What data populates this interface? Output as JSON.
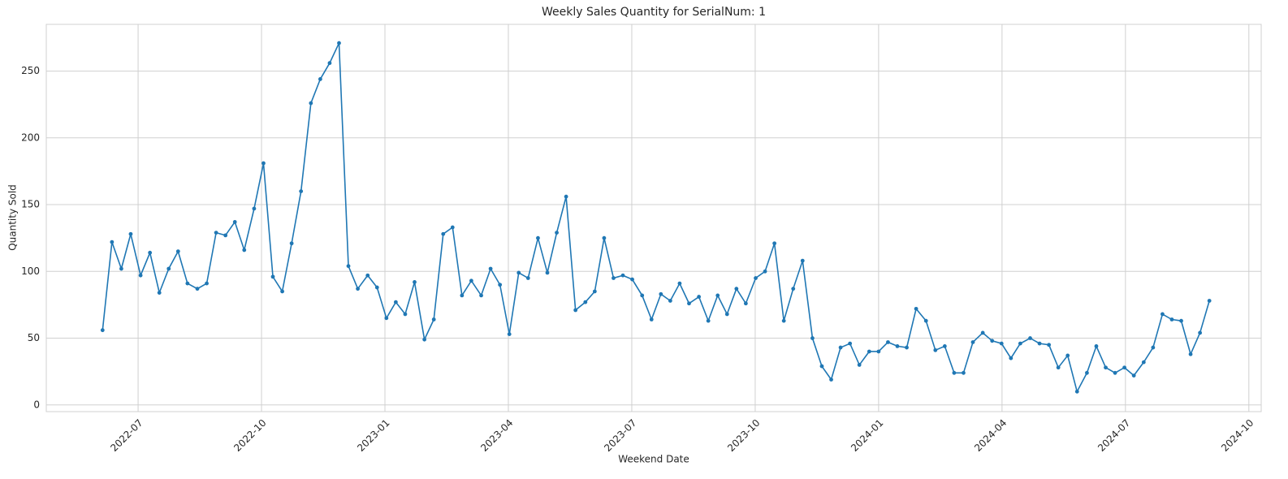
{
  "chart_data": {
    "type": "line",
    "title": "Weekly Sales Quantity for SerialNum: 1",
    "xlabel": "Weekend Date",
    "ylabel": "Quantity Sold",
    "color": "#1f77b4",
    "grid": true,
    "markers": true,
    "x": [
      2022.428,
      2022.447,
      2022.466,
      2022.485,
      2022.505,
      2022.524,
      2022.543,
      2022.562,
      2022.581,
      2022.6,
      2022.62,
      2022.639,
      2022.658,
      2022.677,
      2022.696,
      2022.715,
      2022.735,
      2022.754,
      2022.773,
      2022.792,
      2022.811,
      2022.83,
      2022.85,
      2022.869,
      2022.888,
      2022.907,
      2022.926,
      2022.945,
      2022.965,
      2022.984,
      2023.003,
      2023.022,
      2023.041,
      2023.06,
      2023.08,
      2023.099,
      2023.118,
      2023.137,
      2023.156,
      2023.175,
      2023.195,
      2023.214,
      2023.233,
      2023.252,
      2023.271,
      2023.29,
      2023.31,
      2023.329,
      2023.348,
      2023.367,
      2023.386,
      2023.406,
      2023.425,
      2023.444,
      2023.463,
      2023.482,
      2023.501,
      2023.521,
      2023.54,
      2023.559,
      2023.578,
      2023.597,
      2023.616,
      2023.636,
      2023.655,
      2023.674,
      2023.693,
      2023.712,
      2023.731,
      2023.751,
      2023.77,
      2023.789,
      2023.808,
      2023.827,
      2023.846,
      2023.866,
      2023.885,
      2023.904,
      2023.923,
      2023.942,
      2023.961,
      2023.981,
      2024.0,
      2024.019,
      2024.038,
      2024.057,
      2024.076,
      2024.096,
      2024.115,
      2024.134,
      2024.153,
      2024.172,
      2024.191,
      2024.211,
      2024.23,
      2024.249,
      2024.268,
      2024.287,
      2024.307,
      2024.326,
      2024.345,
      2024.364,
      2024.383,
      2024.402,
      2024.422,
      2024.441,
      2024.46,
      2024.479,
      2024.498,
      2024.517,
      2024.537,
      2024.556,
      2024.575,
      2024.594,
      2024.613,
      2024.632,
      2024.651,
      2024.67
    ],
    "values": [
      56,
      122,
      102,
      128,
      97,
      114,
      84,
      102,
      115,
      91,
      87,
      91,
      129,
      127,
      137,
      116,
      147,
      181,
      96,
      85,
      121,
      160,
      226,
      244,
      256,
      271,
      104,
      87,
      97,
      88,
      65,
      77,
      68,
      92,
      49,
      64,
      128,
      133,
      82,
      93,
      82,
      102,
      90,
      53,
      99,
      95,
      125,
      99,
      129,
      156,
      71,
      77,
      85,
      125,
      95,
      97,
      94,
      82,
      64,
      83,
      78,
      91,
      76,
      81,
      63,
      82,
      68,
      87,
      76,
      95,
      100,
      121,
      63,
      87,
      108,
      50,
      29,
      19,
      43,
      46,
      30,
      40,
      40,
      47,
      44,
      43,
      72,
      63,
      41,
      44,
      24,
      24,
      47,
      54,
      48,
      46,
      35,
      46,
      50,
      46,
      45,
      28,
      37,
      10,
      24,
      44,
      28,
      24,
      28,
      22,
      32,
      43,
      68,
      64,
      63,
      38,
      54,
      78
    ],
    "xlim": [
      2022.314,
      2024.775
    ],
    "ylim": [
      -5,
      285
    ],
    "xticks": [
      {
        "value": 2022.5,
        "label": "2022-07"
      },
      {
        "value": 2022.75,
        "label": "2022-10"
      },
      {
        "value": 2023.0,
        "label": "2023-01"
      },
      {
        "value": 2023.25,
        "label": "2023-04"
      },
      {
        "value": 2023.5,
        "label": "2023-07"
      },
      {
        "value": 2023.75,
        "label": "2023-10"
      },
      {
        "value": 2024.0,
        "label": "2024-01"
      },
      {
        "value": 2024.25,
        "label": "2024-04"
      },
      {
        "value": 2024.5,
        "label": "2024-07"
      },
      {
        "value": 2024.75,
        "label": "2024-10"
      }
    ],
    "yticks": [
      0,
      50,
      100,
      150,
      200,
      250
    ]
  }
}
